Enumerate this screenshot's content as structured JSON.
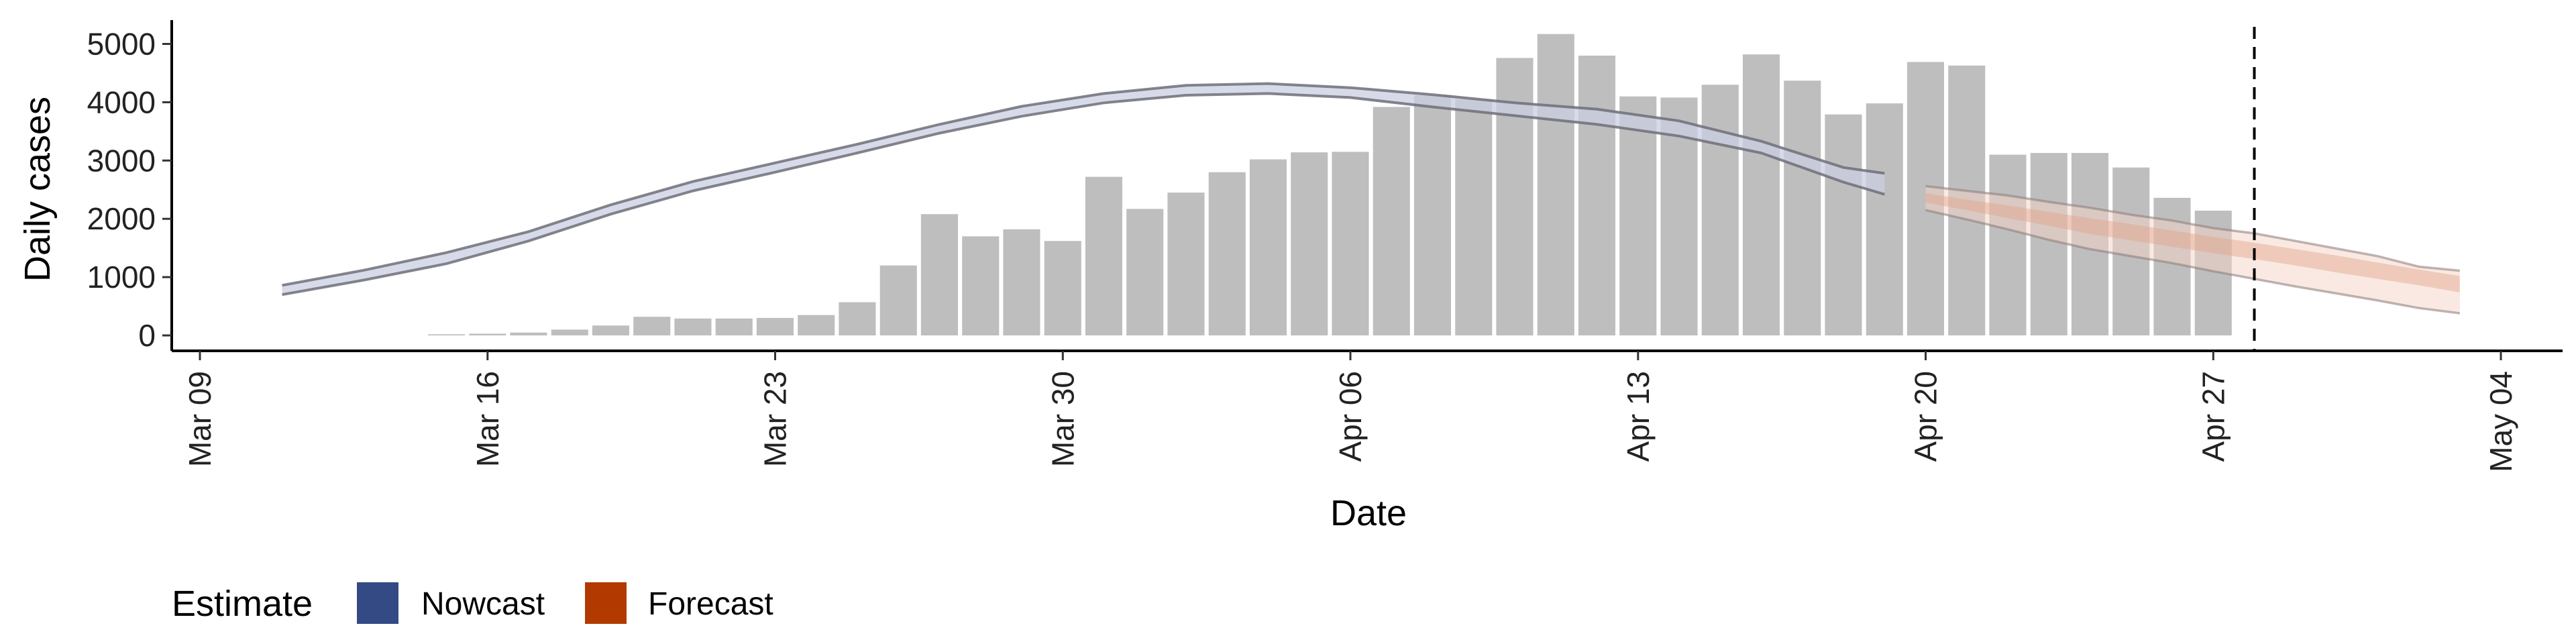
{
  "chart_data": {
    "type": "bar",
    "title": "",
    "xlabel": "Date",
    "ylabel": "Daily cases",
    "ylim": [
      0,
      5200
    ],
    "y_ticks": [
      "0",
      "1000",
      "2000",
      "3000",
      "4000",
      "5000"
    ],
    "x_ticks": [
      "Mar 09",
      "Mar 16",
      "Mar 23",
      "Mar 30",
      "Apr 06",
      "Apr 13",
      "Apr 20",
      "Apr 27",
      "May 04"
    ],
    "dates": [
      "Mar 15",
      "Mar 16",
      "Mar 17",
      "Mar 18",
      "Mar 19",
      "Mar 20",
      "Mar 21",
      "Mar 22",
      "Mar 23",
      "Mar 24",
      "Mar 25",
      "Mar 26",
      "Mar 27",
      "Mar 28",
      "Mar 29",
      "Mar 30",
      "Mar 31",
      "Apr 01",
      "Apr 02",
      "Apr 03",
      "Apr 04",
      "Apr 05",
      "Apr 06",
      "Apr 07",
      "Apr 08",
      "Apr 09",
      "Apr 10",
      "Apr 11",
      "Apr 12",
      "Apr 13",
      "Apr 14",
      "Apr 15",
      "Apr 16",
      "Apr 17",
      "Apr 18",
      "Apr 19",
      "Apr 20",
      "Apr 21",
      "Apr 22",
      "Apr 23",
      "Apr 24",
      "Apr 25",
      "Apr 26",
      "Apr 27",
      "Apr 28"
    ],
    "values": [
      20,
      30,
      50,
      100,
      170,
      320,
      290,
      290,
      300,
      350,
      570,
      1200,
      2080,
      1700,
      1820,
      1620,
      2720,
      2170,
      2450,
      2800,
      3020,
      3140,
      3150,
      3920,
      4120,
      4050,
      4760,
      5170,
      4800,
      4100,
      4080,
      4300,
      4820,
      4370,
      3790,
      3980,
      4690,
      4630,
      3100,
      3130,
      3130,
      2880,
      2360,
      2140,
      null
    ],
    "reference_date": "Apr 28",
    "bands": [
      {
        "name": "Nowcast",
        "color": "#334a85",
        "dates": [
          "Mar 11",
          "Mar 13",
          "Mar 15",
          "Mar 17",
          "Mar 19",
          "Mar 21",
          "Mar 23",
          "Mar 25",
          "Mar 27",
          "Mar 29",
          "Mar 31",
          "Apr 02",
          "Apr 04",
          "Apr 06",
          "Apr 08",
          "Apr 10",
          "Apr 12",
          "Apr 14",
          "Apr 16",
          "Apr 18",
          "Apr 19"
        ],
        "lower": [
          700,
          950,
          1230,
          1620,
          2080,
          2480,
          2800,
          3130,
          3470,
          3760,
          3990,
          4120,
          4150,
          4080,
          3920,
          3770,
          3620,
          3420,
          3130,
          2630,
          2420
        ],
        "upper": [
          860,
          1120,
          1420,
          1780,
          2240,
          2640,
          2960,
          3280,
          3620,
          3930,
          4150,
          4290,
          4320,
          4250,
          4130,
          3990,
          3880,
          3680,
          3330,
          2880,
          2780
        ]
      },
      {
        "name": "Forecast",
        "color": "#b23a00",
        "dates": [
          "Apr 20",
          "Apr 21",
          "Apr 22",
          "Apr 23",
          "Apr 24",
          "Apr 25",
          "Apr 26",
          "Apr 27",
          "Apr 28",
          "Apr 29",
          "Apr 30",
          "May 01",
          "May 02",
          "May 03"
        ],
        "lower": [
          2150,
          1990,
          1820,
          1640,
          1480,
          1360,
          1240,
          1100,
          970,
          840,
          720,
          600,
          470,
          380
        ],
        "upper": [
          2560,
          2480,
          2400,
          2290,
          2190,
          2070,
          1970,
          1840,
          1750,
          1620,
          1490,
          1360,
          1180,
          1110
        ],
        "inner_lower": [
          2280,
          2150,
          2010,
          1880,
          1740,
          1630,
          1520,
          1410,
          1310,
          1200,
          1080,
          970,
          860,
          740
        ],
        "inner_upper": [
          2440,
          2330,
          2230,
          2120,
          2010,
          1910,
          1800,
          1690,
          1590,
          1480,
          1370,
          1250,
          1130,
          1020
        ]
      }
    ],
    "legend": {
      "title": "Estimate",
      "position": "bottom-left",
      "items": [
        {
          "label": "Nowcast",
          "color": "#334a85"
        },
        {
          "label": "Forecast",
          "color": "#b23a00"
        }
      ]
    },
    "grid": false,
    "bar_color": "#bebebe"
  }
}
